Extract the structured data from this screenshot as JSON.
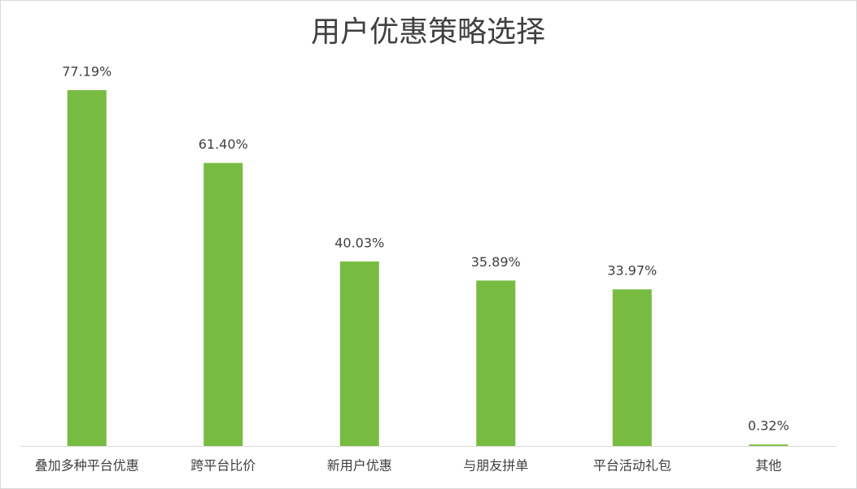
{
  "chart_data": {
    "type": "bar",
    "title": "用户优惠策略选择",
    "categories": [
      "叠加多种平台优惠",
      "跨平台比价",
      "新用户优惠",
      "与朋友拼单",
      "平台活动礼包",
      "其他"
    ],
    "values": [
      77.19,
      61.4,
      40.03,
      35.89,
      33.97,
      0.32
    ],
    "value_labels": [
      "77.19%",
      "61.40%",
      "40.03%",
      "35.89%",
      "33.97%",
      "0.32%"
    ],
    "color": "#77bc41"
  }
}
